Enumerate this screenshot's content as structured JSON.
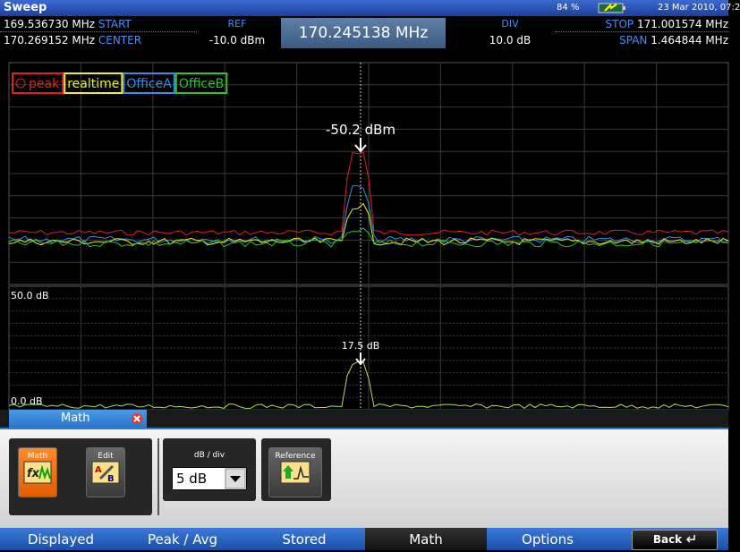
{
  "title_bar": {
    "title": "Sweep",
    "battery": "84 %",
    "datetime": "23 Mar 2010, 07:2"
  },
  "header": {
    "start_freq": "169.536730 MHz",
    "start_label": "START",
    "center_freq": "170.269152 MHz",
    "center_label": "CENTER",
    "ref_label": "REF",
    "ref_value": "-10.0 dBm",
    "marker_freq": "170.245138 MHz",
    "div_label": "DIV",
    "div_value": "10.0 dB",
    "stop_label": "STOP",
    "stop_freq": "171.001574 MHz",
    "span_label": "SPAN",
    "span_freq": "1.464844 MHz"
  },
  "legend": [
    "peak",
    "realtime",
    "OfficeA",
    "OfficeB"
  ],
  "main_plot": {
    "marker_label": "-50.2 dBm"
  },
  "math_plot": {
    "top_label": "50.0 dB",
    "bottom_label": "0.0 dB",
    "marker_label": "17.5 dB"
  },
  "tab": "Math",
  "controls": {
    "math": "Math",
    "edit": "Edit",
    "db_div_label": "dB / div",
    "db_div_value": "5 dB",
    "reference": "Reference"
  },
  "nav": [
    "Displayed",
    "Peak / Avg",
    "Stored",
    "Math",
    "Options",
    "Back"
  ]
}
